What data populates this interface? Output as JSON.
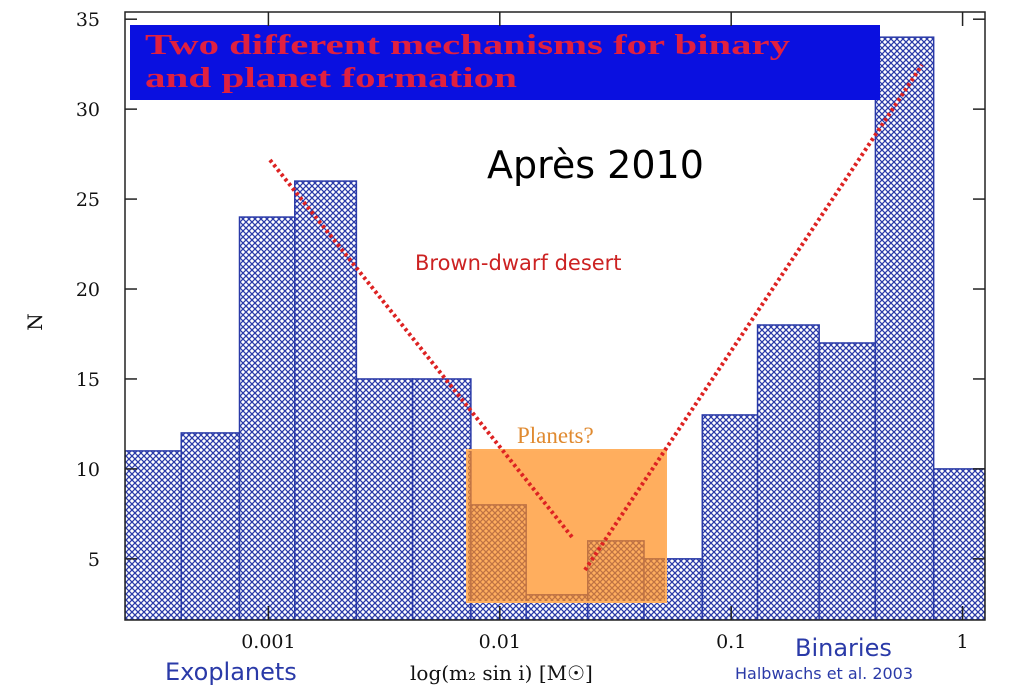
{
  "chart_data": {
    "type": "histogram",
    "title": [
      "Two different mechanisms for binary",
      "and planet formation"
    ],
    "xlabel": "log(m₂ sin i) [M☉]",
    "ylabel": "N",
    "bins": [
      0.00024,
      0.00042,
      0.00075,
      0.0013,
      0.0024,
      0.0042,
      0.0075,
      0.013,
      0.024,
      0.042,
      0.075,
      0.13,
      0.24,
      0.42,
      0.75,
      1.25
    ],
    "counts": [
      11,
      12,
      24,
      26,
      15,
      15,
      8,
      3,
      6,
      5,
      13,
      18,
      17,
      34,
      10
    ],
    "color": "#2a3aa8",
    "xscale": "log",
    "xlim": [
      0.00024,
      1.25
    ],
    "xticks": [
      0.001,
      0.01,
      0.1,
      1
    ],
    "ylim": [
      1.6,
      35.4
    ],
    "yticks": [
      5,
      10,
      15,
      20,
      25,
      30,
      35
    ],
    "annotations": [
      "Après 2010",
      "Brown-dwarf desert",
      "Planets?",
      "Exoplanets",
      "Binaries",
      "Halbwachs et al. 2003"
    ]
  }
}
